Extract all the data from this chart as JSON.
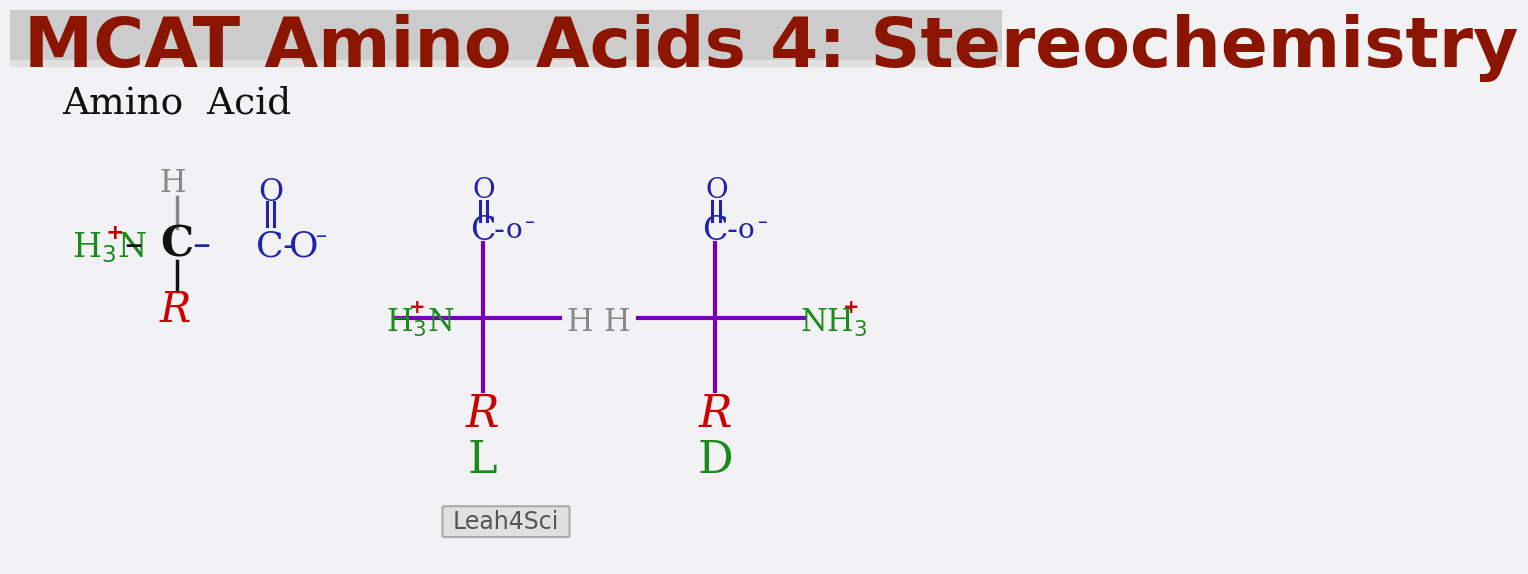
{
  "title": "MCAT Amino Acids 4: Stereochemistry",
  "title_color": "#8B1500",
  "title_bg_top": "#c8c8c8",
  "title_bg_bot": "#d8d8d8",
  "whiteboard_color": "#f2f2f4",
  "green_color": "#1a8a1a",
  "red_color": "#cc0000",
  "blue_color": "#2222aa",
  "purple_color": "#7700bb",
  "black_color": "#111111",
  "gray_color": "#888888",
  "watermark": "Leah4Sci"
}
